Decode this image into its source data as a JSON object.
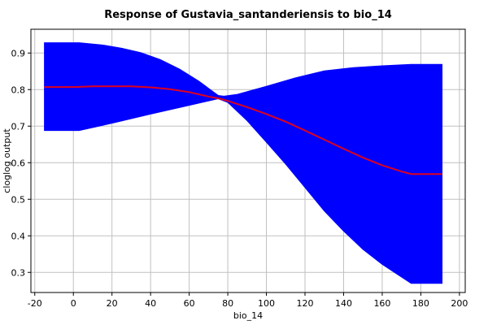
{
  "chart_data": {
    "type": "area",
    "title": "Response of Gustavia_santanderiensis to bio_14",
    "xlabel": "bio_14",
    "ylabel": "cloglog output",
    "xlim": [
      -22,
      203
    ],
    "ylim": [
      0.245,
      0.965
    ],
    "x_ticks": [
      -20,
      0,
      20,
      40,
      60,
      80,
      100,
      120,
      140,
      160,
      180,
      200
    ],
    "y_ticks": [
      0.3,
      0.4,
      0.5,
      0.6,
      0.7,
      0.8,
      0.9
    ],
    "grid": true,
    "series": [
      {
        "role": "mean",
        "color": "#e0001b",
        "x": [
          -15,
          0,
          10,
          20,
          30,
          40,
          50,
          60,
          70,
          76,
          80,
          90,
          100,
          110,
          120,
          130,
          140,
          150,
          160,
          170,
          175,
          191
        ],
        "y": [
          0.807,
          0.807,
          0.809,
          0.809,
          0.809,
          0.806,
          0.801,
          0.793,
          0.781,
          0.775,
          0.769,
          0.752,
          0.733,
          0.712,
          0.688,
          0.663,
          0.638,
          0.614,
          0.593,
          0.576,
          0.569,
          0.569
        ]
      },
      {
        "role": "upper",
        "color": "#0000ff",
        "x": [
          -15,
          3,
          15,
          25,
          35,
          45,
          55,
          65,
          75,
          78,
          85,
          100,
          115,
          130,
          145,
          160,
          175,
          191
        ],
        "y": [
          0.928,
          0.928,
          0.922,
          0.913,
          0.901,
          0.882,
          0.856,
          0.823,
          0.784,
          0.782,
          0.787,
          0.809,
          0.832,
          0.851,
          0.86,
          0.865,
          0.869,
          0.869
        ]
      },
      {
        "role": "lower",
        "color": "#0000ff",
        "x": [
          -15,
          3,
          20,
          40,
          60,
          75,
          80,
          90,
          100,
          110,
          120,
          130,
          140,
          150,
          160,
          175,
          191
        ],
        "y": [
          0.688,
          0.688,
          0.708,
          0.733,
          0.757,
          0.775,
          0.765,
          0.715,
          0.656,
          0.596,
          0.532,
          0.468,
          0.413,
          0.363,
          0.322,
          0.27,
          0.27
        ]
      }
    ]
  }
}
